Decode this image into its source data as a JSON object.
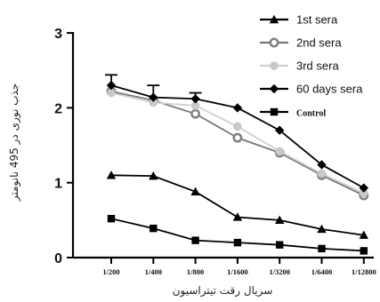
{
  "chart_data": {
    "type": "line",
    "xlabel": "سریال رقت تیتراسیون",
    "ylabel": "جذب نوری در 495 نانومتر",
    "categories": [
      "1/200",
      "1/400",
      "1/800",
      "1/1600",
      "1/3200",
      "1/6400",
      "1/12800"
    ],
    "ylim": [
      0,
      3
    ],
    "yticks": [
      "0",
      "1",
      "2",
      "3"
    ],
    "grid": false,
    "legend_position": "top-right",
    "series": [
      {
        "name": "1st sera",
        "marker": "triangle",
        "color": "#000000",
        "values": [
          1.1,
          1.09,
          0.88,
          0.54,
          0.5,
          0.38,
          0.3
        ]
      },
      {
        "name": "2nd sera",
        "marker": "open-circle",
        "color": "#808080",
        "values": [
          2.22,
          2.1,
          1.92,
          1.6,
          1.4,
          1.1,
          0.83
        ]
      },
      {
        "name": "3rd sera",
        "marker": "filled-circle",
        "color": "#c8c8c8",
        "values": [
          2.2,
          2.07,
          2.03,
          1.75,
          1.42,
          1.12,
          0.86
        ]
      },
      {
        "name": "60 days sera",
        "marker": "diamond",
        "color": "#000000",
        "values": [
          2.3,
          2.14,
          2.12,
          2.0,
          1.7,
          1.24,
          0.93
        ],
        "error_up": [
          0.14,
          0.16,
          0.08,
          0,
          0,
          0,
          0
        ]
      },
      {
        "name": "Control",
        "marker": "square",
        "color": "#000000",
        "values": [
          0.52,
          0.39,
          0.23,
          0.2,
          0.17,
          0.12,
          0.09
        ]
      }
    ]
  }
}
